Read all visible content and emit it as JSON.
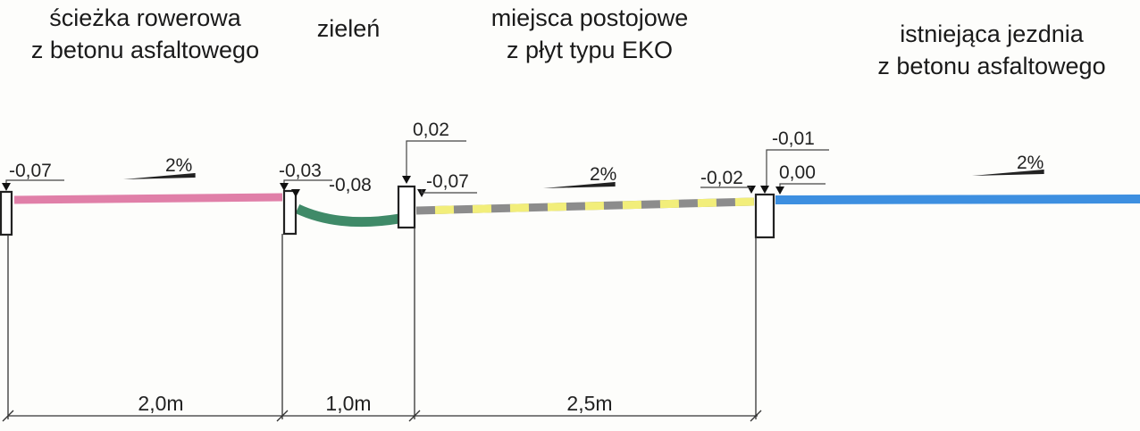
{
  "zones": [
    {
      "line1": "ścieżka rowerowa",
      "line2": "z betonu asfaltowego",
      "width": "2,0m",
      "slope": "2%",
      "color": "#e07fa8"
    },
    {
      "line1": "zieleń",
      "line2": "",
      "width": "1,0m",
      "color": "#3f8a68"
    },
    {
      "line1": "miejsca postojowe",
      "line2": "z płyt typu EKO",
      "width": "2,5m",
      "slope": "2%",
      "color_a": "#8c8c8c",
      "color_b": "#f2ee7a"
    },
    {
      "line1": "istniejąca jezdnia",
      "line2": "z betonu asfaltowego",
      "slope": "2%",
      "color": "#3d8fe0"
    }
  ],
  "elevations": {
    "e1": "-0,07",
    "e2": "-0,03",
    "e3": "-0,08",
    "e4": "0,02",
    "e5": "-0,07",
    "e6": "-0,02",
    "e7": "-0,01",
    "e8": "0,00"
  }
}
